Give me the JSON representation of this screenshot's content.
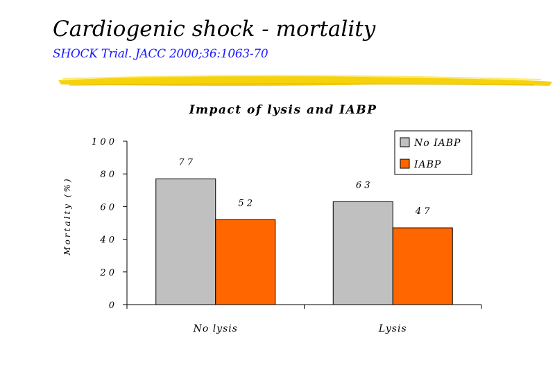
{
  "slide": {
    "title": "Cardiogenic shock - mortality",
    "subtitle": "SHOCK Trial. JACC 2000;36:1063-70",
    "highlight_color": "#f5d000"
  },
  "chart_data": {
    "type": "bar",
    "title": "Impact of lysis and IABP",
    "xlabel": "",
    "ylabel": "Mortalty (%)",
    "categories": [
      "No lysis",
      "Lysis"
    ],
    "series": [
      {
        "name": "No IABP",
        "values": [
          77,
          63
        ],
        "color": "#c0c0c0"
      },
      {
        "name": "IABP",
        "values": [
          52,
          47
        ],
        "color": "#ff6600"
      }
    ],
    "ylim": [
      0,
      100
    ],
    "yticks": [
      0,
      20,
      40,
      60,
      80,
      100
    ],
    "ytick_labels": [
      "0",
      "2 0",
      "4 0",
      "6 0",
      "8 0",
      "1 0 0"
    ],
    "data_labels": [
      [
        "7 7",
        "6 3"
      ],
      [
        "5 2",
        "4 7"
      ]
    ],
    "category_labels": [
      "No lysis",
      "Lysis"
    ],
    "legend_labels": [
      "No  IABP",
      "IABP"
    ],
    "legend_position": "top-right",
    "grid": false
  }
}
